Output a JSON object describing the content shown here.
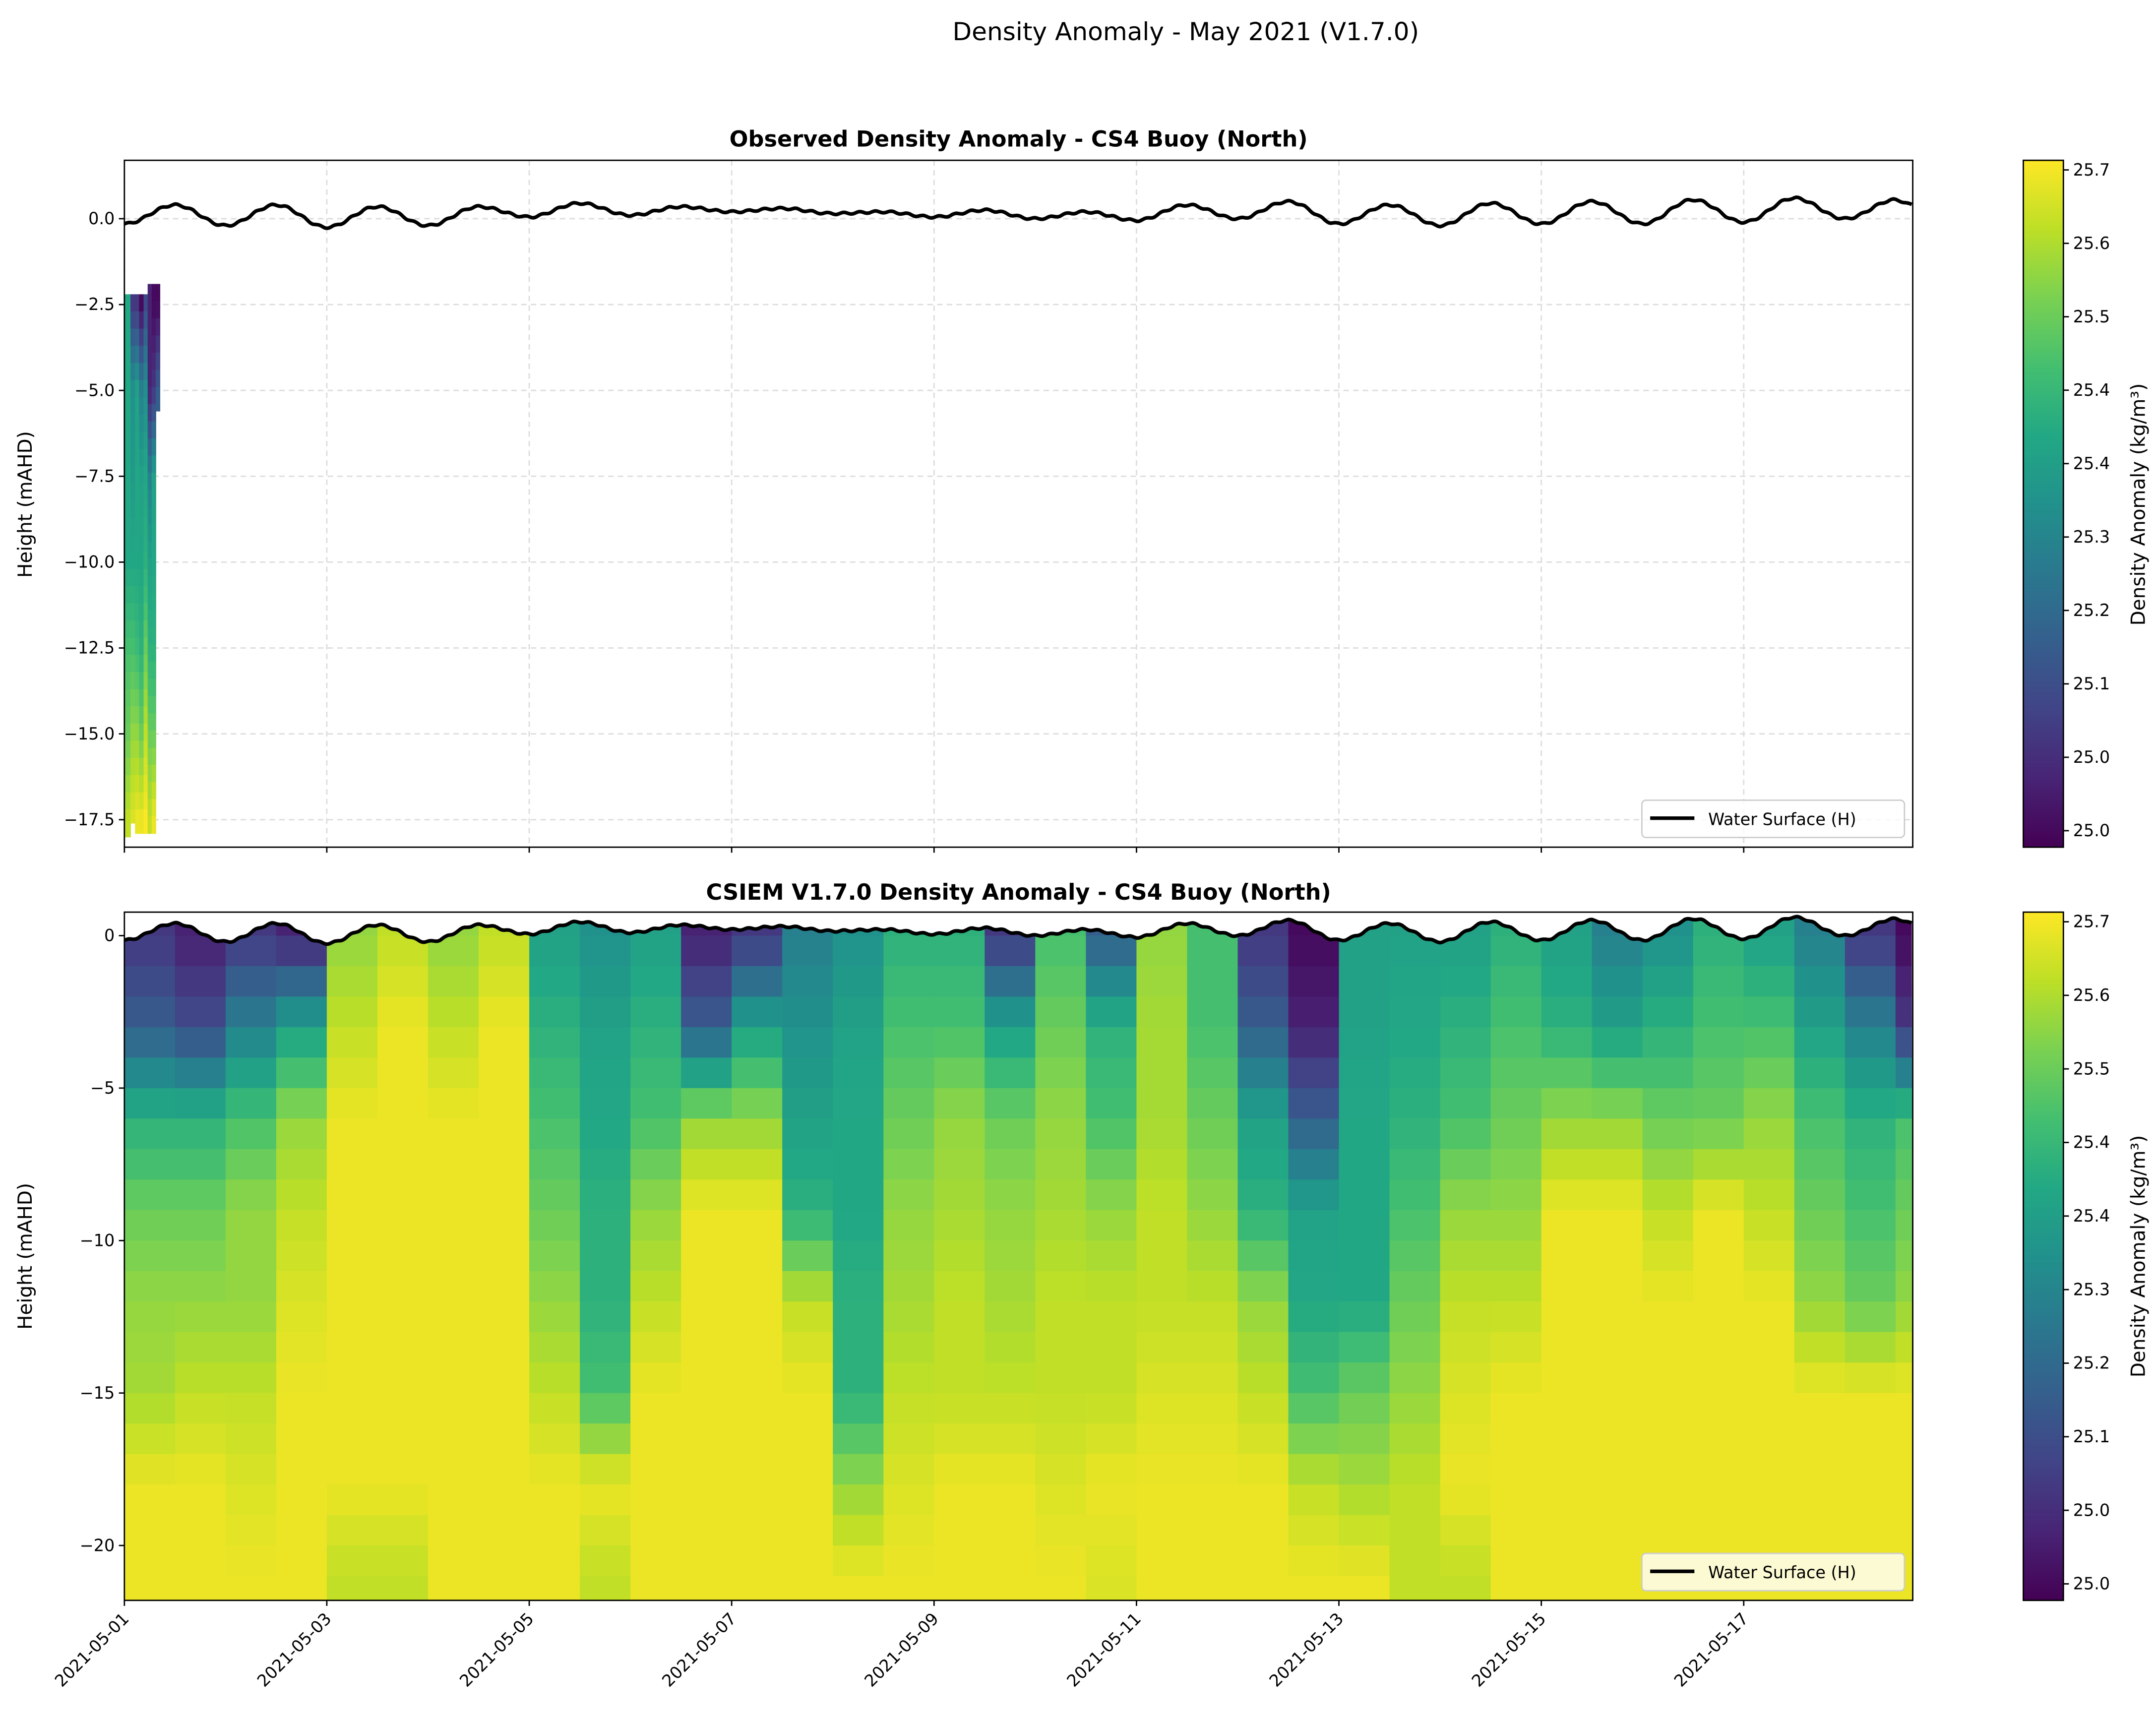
{
  "figure": {
    "suptitle": "Density Anomaly - May 2021 (V1.7.0)"
  },
  "colormap": "viridis",
  "colors": {
    "water_surface": "#000000",
    "grid": "#dddddd"
  },
  "chart_data": [
    {
      "type": "heatmap",
      "title": "Observed Density Anomaly - CS4 Buoy (North)",
      "xlabel": "",
      "ylabel": "Height (mAHD)",
      "x_axis": "date",
      "x_start": "2021-05-01",
      "xlim_days": [
        0,
        17.67
      ],
      "ylim": [
        -18.3,
        1.7
      ],
      "yticks": [
        "0.0",
        "−2.5",
        "−5.0",
        "−7.5",
        "−10.0",
        "−12.5",
        "−15.0",
        "−17.5"
      ],
      "ytick_values": [
        0,
        -2.5,
        -5,
        -7.5,
        -10,
        -12.5,
        -15,
        -17.5
      ],
      "grid": true,
      "legend": {
        "label": "Water Surface (H)",
        "placement": "lower right"
      },
      "colorbar": {
        "label": "Density Anomaly (kg/m³)",
        "ticks": [
          "25.7",
          "25.6",
          "25.5",
          "25.4",
          "25.4",
          "25.3",
          "25.2",
          "25.1",
          "25.0",
          "25.0"
        ],
        "vmin": 24.98,
        "vmax": 25.72
      },
      "profile_levels": [
        -2.5,
        -5,
        -7.5,
        -10,
        -12.5,
        -15,
        -17.5
      ],
      "profiles": [
        {
          "t0": 0.0,
          "t1": 0.06,
          "top": -2.2,
          "bottom": -18.0,
          "values": [
            25.42,
            25.42,
            25.42,
            25.42,
            25.5,
            25.55,
            25.65
          ]
        },
        {
          "t0": 0.06,
          "t1": 0.105,
          "top": -2.2,
          "bottom": -17.6,
          "values": [
            25.1,
            25.35,
            25.38,
            25.42,
            25.5,
            25.6,
            25.68
          ]
        },
        {
          "t0": 0.105,
          "t1": 0.145,
          "top": -2.2,
          "bottom": -17.9,
          "values": [
            25.1,
            25.4,
            25.42,
            25.42,
            25.48,
            25.6,
            25.7
          ]
        },
        {
          "t0": 0.145,
          "t1": 0.19,
          "top": -2.2,
          "bottom": -17.9,
          "values": [
            25.0,
            25.3,
            25.4,
            25.42,
            25.45,
            25.55,
            25.7
          ]
        },
        {
          "t0": 0.19,
          "t1": 0.23,
          "top": -2.2,
          "bottom": -17.9,
          "values": [
            25.15,
            25.35,
            25.42,
            25.45,
            25.55,
            25.65,
            25.72
          ]
        },
        {
          "t0": 0.23,
          "t1": 0.27,
          "top": -1.9,
          "bottom": -17.9,
          "values": [
            25.05,
            25.05,
            25.3,
            25.4,
            25.45,
            25.55,
            25.65
          ]
        },
        {
          "t0": 0.27,
          "t1": 0.31,
          "top": -1.9,
          "bottom": -17.9,
          "values": [
            25.0,
            25.1,
            25.4,
            25.42,
            25.45,
            25.55,
            25.7
          ]
        },
        {
          "t0": 0.31,
          "t1": 0.35,
          "top": -1.9,
          "bottom": -5.6,
          "values": [
            25.0,
            25.2
          ]
        }
      ]
    },
    {
      "type": "heatmap",
      "title": "CSIEM V1.7.0 Density Anomaly - CS4 Buoy (North)",
      "xlabel": "",
      "ylabel": "Height (mAHD)",
      "x_axis": "date",
      "x_start": "2021-05-01",
      "xlim_days": [
        0,
        17.67
      ],
      "xticks": [
        "2021-05-01",
        "2021-05-03",
        "2021-05-05",
        "2021-05-07",
        "2021-05-09",
        "2021-05-11",
        "2021-05-13",
        "2021-05-15",
        "2021-05-17"
      ],
      "ylim": [
        -21.8,
        0.77
      ],
      "yticks": [
        "0",
        "−5",
        "−10",
        "−15",
        "−20"
      ],
      "ytick_values": [
        0,
        -5,
        -10,
        -15,
        -20
      ],
      "legend": {
        "label": "Water Surface (H)",
        "placement": "lower right"
      },
      "colorbar": {
        "label": "Density Anomaly (kg/m³)",
        "ticks": [
          "25.7",
          "25.6",
          "25.5",
          "25.4",
          "25.4",
          "25.3",
          "25.2",
          "25.1",
          "25.0",
          "25.0"
        ],
        "vmin": 24.98,
        "vmax": 25.72
      },
      "column_step_days": 0.5,
      "depth_levels": [
        0,
        -3,
        -6,
        -9,
        -12,
        -15,
        -18,
        -21
      ],
      "grid_values": [
        [
          25.1,
          25.2,
          25.45,
          25.55,
          25.6,
          25.62,
          25.7,
          25.7
        ],
        [
          25.05,
          25.15,
          25.45,
          25.55,
          25.6,
          25.65,
          25.7,
          25.7
        ],
        [
          25.1,
          25.3,
          25.5,
          25.6,
          25.6,
          25.65,
          25.68,
          25.7
        ],
        [
          25.05,
          25.4,
          25.6,
          25.65,
          25.68,
          25.7,
          25.7,
          25.7
        ],
        [
          25.6,
          25.65,
          25.7,
          25.7,
          25.7,
          25.7,
          25.7,
          25.65
        ],
        [
          25.65,
          25.7,
          25.7,
          25.7,
          25.7,
          25.7,
          25.7,
          25.65
        ],
        [
          25.6,
          25.65,
          25.7,
          25.7,
          25.7,
          25.7,
          25.7,
          25.7
        ],
        [
          25.65,
          25.7,
          25.7,
          25.7,
          25.7,
          25.7,
          25.7,
          25.7
        ],
        [
          25.4,
          25.45,
          25.5,
          25.55,
          25.6,
          25.65,
          25.7,
          25.7
        ],
        [
          25.35,
          25.4,
          25.42,
          25.45,
          25.45,
          25.5,
          25.7,
          25.65
        ],
        [
          25.4,
          25.45,
          25.5,
          25.6,
          25.65,
          25.7,
          25.7,
          25.7
        ],
        [
          25.05,
          25.2,
          25.6,
          25.7,
          25.7,
          25.7,
          25.7,
          25.7
        ],
        [
          25.1,
          25.4,
          25.6,
          25.7,
          25.7,
          25.7,
          25.7,
          25.7
        ],
        [
          25.3,
          25.35,
          25.4,
          25.45,
          25.65,
          25.7,
          25.7,
          25.7
        ],
        [
          25.35,
          25.4,
          25.42,
          25.42,
          25.45,
          25.45,
          25.6,
          25.7
        ],
        [
          25.45,
          25.5,
          25.55,
          25.6,
          25.62,
          25.65,
          25.68,
          25.7
        ],
        [
          25.45,
          25.5,
          25.6,
          25.62,
          25.65,
          25.65,
          25.7,
          25.7
        ],
        [
          25.1,
          25.4,
          25.55,
          25.6,
          25.62,
          25.65,
          25.7,
          25.7
        ],
        [
          25.5,
          25.55,
          25.6,
          25.62,
          25.65,
          25.65,
          25.68,
          25.7
        ],
        [
          25.2,
          25.45,
          25.5,
          25.6,
          25.65,
          25.65,
          25.7,
          25.68
        ],
        [
          25.6,
          25.62,
          25.62,
          25.65,
          25.65,
          25.68,
          25.7,
          25.7
        ],
        [
          25.5,
          25.5,
          25.55,
          25.6,
          25.65,
          25.68,
          25.7,
          25.7
        ],
        [
          25.1,
          25.2,
          25.4,
          25.45,
          25.6,
          25.65,
          25.7,
          25.7
        ],
        [
          25.0,
          25.05,
          25.2,
          25.4,
          25.42,
          25.5,
          25.65,
          25.7
        ],
        [
          25.4,
          25.4,
          25.42,
          25.42,
          25.42,
          25.55,
          25.62,
          25.7
        ],
        [
          25.4,
          25.42,
          25.45,
          25.5,
          25.55,
          25.6,
          25.65,
          25.65
        ],
        [
          25.4,
          25.45,
          25.5,
          25.6,
          25.65,
          25.68,
          25.7,
          25.65
        ],
        [
          25.45,
          25.5,
          25.55,
          25.6,
          25.65,
          25.7,
          25.7,
          25.7
        ],
        [
          25.4,
          25.45,
          25.6,
          25.7,
          25.7,
          25.7,
          25.7,
          25.7
        ],
        [
          25.3,
          25.4,
          25.6,
          25.7,
          25.7,
          25.7,
          25.7,
          25.7
        ],
        [
          25.35,
          25.45,
          25.55,
          25.65,
          25.7,
          25.7,
          25.7,
          25.7
        ],
        [
          25.45,
          25.5,
          25.55,
          25.7,
          25.7,
          25.7,
          25.7,
          25.7
        ],
        [
          25.4,
          25.5,
          25.6,
          25.65,
          25.7,
          25.7,
          25.7,
          25.7
        ],
        [
          25.3,
          25.4,
          25.5,
          25.55,
          25.6,
          25.7,
          25.7,
          25.7
        ],
        [
          25.1,
          25.3,
          25.45,
          25.5,
          25.55,
          25.7,
          25.7,
          25.7
        ],
        [
          25.0,
          25.1,
          25.5,
          25.55,
          25.6,
          25.7,
          25.7,
          25.7
        ]
      ]
    }
  ],
  "water_surface": {
    "label": "Water Surface (H)",
    "days": [
      0,
      0.5,
      1,
      1.5,
      2,
      2.5,
      3,
      3.5,
      4,
      4.5,
      5,
      5.5,
      6,
      6.5,
      7,
      7.5,
      8,
      8.5,
      9,
      9.5,
      10,
      10.5,
      11,
      11.5,
      12,
      12.5,
      13,
      13.5,
      14,
      14.5,
      15,
      15.5,
      16,
      16.5,
      17,
      17.5,
      17.67
    ],
    "height_m": [
      -0.15,
      0.4,
      -0.2,
      0.4,
      -0.25,
      0.35,
      -0.2,
      0.35,
      0.05,
      0.45,
      0.1,
      0.35,
      0.2,
      0.3,
      0.15,
      0.2,
      0.05,
      0.25,
      0.0,
      0.2,
      -0.05,
      0.4,
      0.0,
      0.5,
      -0.15,
      0.4,
      -0.2,
      0.45,
      -0.15,
      0.5,
      -0.15,
      0.55,
      -0.1,
      0.6,
      0.0,
      0.55,
      0.4
    ]
  }
}
